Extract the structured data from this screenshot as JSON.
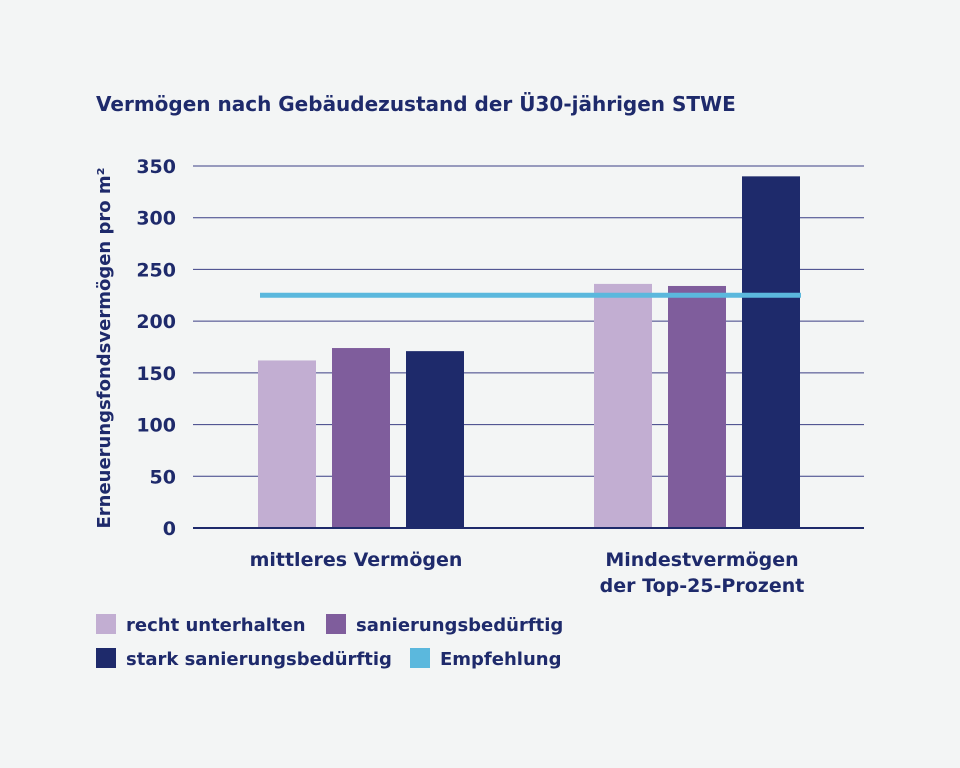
{
  "chart_data": {
    "type": "bar",
    "title": "Vermögen nach Gebäudezustand der Ü30-jährigen STWE",
    "ylabel": "Erneuerungsfondsvermögen pro m²",
    "xlabel": "",
    "ylim": [
      0,
      350
    ],
    "yticks": [
      0,
      50,
      100,
      150,
      200,
      250,
      300,
      350
    ],
    "grid": true,
    "categories": [
      [
        "mittleres Vermögen"
      ],
      [
        "Mindestvermögen",
        "der Top-25-Prozent"
      ]
    ],
    "series": [
      {
        "name": "recht unterhalten",
        "color": "#c2aed2",
        "values": [
          162,
          236
        ]
      },
      {
        "name": "sanierungsbedürftig",
        "color": "#7f5d9c",
        "values": [
          174,
          234
        ]
      },
      {
        "name": "stark sanierungsbedürftig",
        "color": "#1e2a6b",
        "values": [
          171,
          340
        ]
      }
    ],
    "reference_line": {
      "name": "Empfehlung",
      "color": "#5bb8dd",
      "value": 225
    },
    "legend_placement": "bottom-left"
  }
}
